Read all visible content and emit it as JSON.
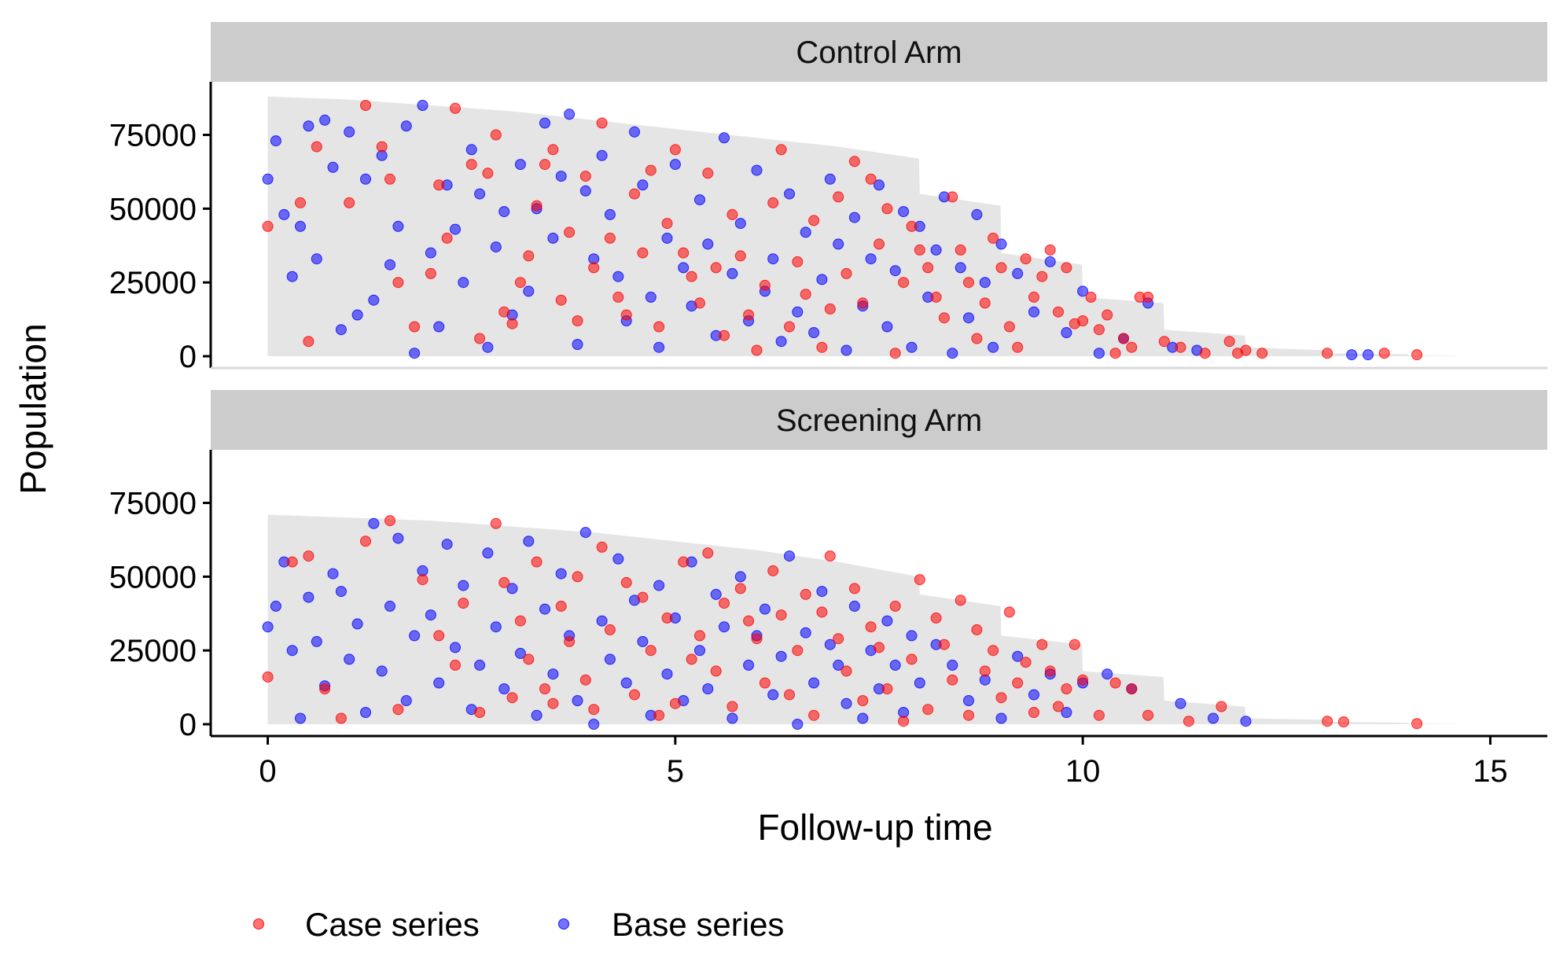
{
  "chart_data": {
    "type": "scatter",
    "xlabel": "Follow-up time",
    "ylabel": "Population",
    "xlim": [
      -0.7,
      15.7
    ],
    "ylim": [
      -4000,
      93000
    ],
    "x_ticks": [
      0,
      5,
      10,
      15
    ],
    "y_ticks": [
      0,
      25000,
      50000,
      75000
    ],
    "grid": false,
    "legend_position": "bottom-left",
    "series": [
      {
        "name": "Case series",
        "color": "#ff0000",
        "key": "case"
      },
      {
        "name": "Base series",
        "color": "#0000ff",
        "key": "base"
      }
    ],
    "point_alpha": 0.55,
    "panels": [
      {
        "title": "Control Arm",
        "population_at_risk": {
          "x": [
            0,
            1,
            2,
            3,
            4,
            5,
            6,
            7,
            7.99,
            8,
            8.99,
            9,
            9.99,
            10,
            10.99,
            11,
            11.99,
            12,
            12.99,
            13,
            13.99,
            14,
            14.6
          ],
          "y": [
            88000,
            87000,
            85000,
            83000,
            80000,
            77000,
            74000,
            71000,
            67000,
            55000,
            51000,
            35000,
            31000,
            20000,
            18000,
            9000,
            7000,
            3000,
            2000,
            1000,
            700,
            300,
            100
          ]
        },
        "case": {
          "x": [
            0.0,
            0.4,
            0.5,
            0.6,
            1.0,
            1.2,
            1.4,
            1.5,
            1.6,
            1.8,
            2.0,
            2.1,
            2.2,
            2.3,
            2.5,
            2.6,
            2.7,
            2.8,
            2.9,
            3.0,
            3.1,
            3.2,
            3.3,
            3.4,
            3.5,
            3.6,
            3.7,
            3.8,
            3.9,
            4.0,
            4.1,
            4.2,
            4.3,
            4.4,
            4.5,
            4.6,
            4.7,
            4.8,
            4.9,
            5.0,
            5.1,
            5.2,
            5.3,
            5.4,
            5.5,
            5.6,
            5.7,
            5.8,
            5.9,
            6.0,
            6.1,
            6.2,
            6.3,
            6.4,
            6.5,
            6.6,
            6.7,
            6.8,
            6.9,
            7.0,
            7.1,
            7.2,
            7.3,
            7.4,
            7.5,
            7.6,
            7.7,
            7.8,
            7.9,
            8.0,
            8.1,
            8.2,
            8.3,
            8.4,
            8.5,
            8.6,
            8.7,
            8.8,
            8.9,
            9.0,
            9.1,
            9.2,
            9.3,
            9.4,
            9.5,
            9.6,
            9.7,
            9.8,
            9.9,
            10.0,
            10.1,
            10.2,
            10.3,
            10.4,
            10.5,
            10.6,
            10.7,
            10.8,
            11.0,
            11.2,
            11.5,
            11.8,
            11.9,
            12.0,
            12.2,
            13.0,
            13.7,
            14.1
          ],
          "y": [
            44000,
            52000,
            5000,
            71000,
            52000,
            85000,
            71000,
            60000,
            25000,
            10000,
            28000,
            58000,
            40000,
            84000,
            65000,
            6000,
            62000,
            75000,
            15000,
            11000,
            25000,
            34000,
            51000,
            65000,
            70000,
            19000,
            42000,
            12000,
            61000,
            30000,
            79000,
            40000,
            20000,
            14000,
            55000,
            35000,
            63000,
            10000,
            45000,
            70000,
            35000,
            27000,
            18000,
            62000,
            30000,
            7000,
            48000,
            34000,
            14000,
            2000,
            24000,
            52000,
            70000,
            10000,
            32000,
            21000,
            46000,
            3000,
            16000,
            54000,
            28000,
            66000,
            18000,
            60000,
            38000,
            50000,
            1000,
            25000,
            44000,
            36000,
            30000,
            20000,
            13000,
            54000,
            36000,
            25000,
            6000,
            18000,
            40000,
            30000,
            10000,
            3000,
            33000,
            20000,
            27000,
            36000,
            15000,
            30000,
            11000,
            12000,
            20000,
            9000,
            14000,
            1000,
            6000,
            3000,
            20000,
            20000,
            5000,
            3000,
            1000,
            5000,
            1000,
            2000,
            1000,
            1000,
            1000,
            500
          ]
        },
        "base": {
          "x": [
            0.0,
            0.1,
            0.2,
            0.3,
            0.4,
            0.5,
            0.6,
            0.7,
            0.8,
            0.9,
            1.0,
            1.1,
            1.2,
            1.3,
            1.4,
            1.5,
            1.6,
            1.7,
            1.8,
            1.9,
            2.0,
            2.1,
            2.2,
            2.3,
            2.4,
            2.5,
            2.6,
            2.7,
            2.8,
            2.9,
            3.0,
            3.1,
            3.2,
            3.3,
            3.4,
            3.5,
            3.6,
            3.7,
            3.8,
            3.9,
            4.0,
            4.1,
            4.2,
            4.3,
            4.4,
            4.5,
            4.6,
            4.7,
            4.8,
            4.9,
            5.0,
            5.1,
            5.2,
            5.3,
            5.4,
            5.5,
            5.6,
            5.7,
            5.8,
            5.9,
            6.0,
            6.1,
            6.2,
            6.3,
            6.4,
            6.5,
            6.6,
            6.7,
            6.8,
            6.9,
            7.0,
            7.1,
            7.2,
            7.3,
            7.4,
            7.5,
            7.6,
            7.7,
            7.8,
            7.9,
            8.0,
            8.1,
            8.2,
            8.3,
            8.4,
            8.5,
            8.6,
            8.7,
            8.8,
            8.9,
            9.0,
            9.2,
            9.4,
            9.6,
            9.8,
            10.0,
            10.2,
            10.5,
            10.8,
            11.1,
            11.4,
            13.3,
            13.5
          ],
          "y": [
            60000,
            73000,
            48000,
            27000,
            44000,
            78000,
            33000,
            80000,
            64000,
            9000,
            76000,
            14000,
            60000,
            19000,
            68000,
            31000,
            44000,
            78000,
            1000,
            85000,
            35000,
            10000,
            58000,
            43000,
            25000,
            70000,
            55000,
            3000,
            37000,
            49000,
            14000,
            65000,
            22000,
            50000,
            79000,
            40000,
            61000,
            82000,
            4000,
            56000,
            33000,
            68000,
            48000,
            27000,
            12000,
            76000,
            58000,
            20000,
            3000,
            40000,
            65000,
            30000,
            17000,
            53000,
            38000,
            7000,
            74000,
            28000,
            45000,
            12000,
            63000,
            22000,
            33000,
            5000,
            55000,
            15000,
            42000,
            8000,
            26000,
            60000,
            38000,
            2000,
            47000,
            17000,
            33000,
            58000,
            10000,
            29000,
            49000,
            3000,
            44000,
            20000,
            36000,
            54000,
            1000,
            30000,
            13000,
            48000,
            25000,
            3000,
            38000,
            28000,
            15000,
            32000,
            8000,
            22000,
            1000,
            6000,
            18000,
            3000,
            2000,
            500,
            500
          ]
        }
      },
      {
        "title": "Screening Arm",
        "population_at_risk": {
          "x": [
            0,
            1,
            2,
            3,
            4,
            5,
            6,
            7,
            7.99,
            8,
            8.99,
            9,
            9.99,
            10,
            10.99,
            11,
            11.99,
            12,
            12.99,
            13,
            13.99,
            14,
            14.6
          ],
          "y": [
            71000,
            70000,
            69000,
            67000,
            65000,
            62000,
            59000,
            55000,
            50000,
            44000,
            40000,
            30000,
            27000,
            18000,
            16000,
            8000,
            6000,
            2000,
            1500,
            800,
            500,
            200,
            100
          ]
        },
        "case": {
          "x": [
            0.0,
            0.3,
            0.5,
            0.7,
            0.9,
            1.2,
            1.5,
            1.6,
            1.9,
            2.1,
            2.3,
            2.4,
            2.6,
            2.8,
            2.9,
            3.0,
            3.1,
            3.2,
            3.3,
            3.4,
            3.5,
            3.6,
            3.7,
            3.8,
            3.9,
            4.0,
            4.1,
            4.2,
            4.4,
            4.5,
            4.6,
            4.7,
            4.8,
            4.9,
            5.0,
            5.1,
            5.2,
            5.3,
            5.4,
            5.5,
            5.6,
            5.7,
            5.8,
            5.9,
            6.0,
            6.1,
            6.2,
            6.3,
            6.4,
            6.5,
            6.6,
            6.7,
            6.8,
            6.9,
            7.0,
            7.1,
            7.2,
            7.3,
            7.4,
            7.5,
            7.6,
            7.7,
            7.8,
            7.9,
            8.0,
            8.1,
            8.2,
            8.3,
            8.4,
            8.5,
            8.6,
            8.7,
            8.8,
            8.9,
            9.0,
            9.1,
            9.2,
            9.3,
            9.4,
            9.5,
            9.6,
            9.7,
            9.8,
            9.9,
            10.0,
            10.2,
            10.4,
            10.6,
            10.8,
            11.3,
            11.7,
            13.0,
            13.2,
            14.1
          ],
          "y": [
            16000,
            55000,
            57000,
            12000,
            2000,
            62000,
            69000,
            5000,
            49000,
            30000,
            20000,
            41000,
            4000,
            68000,
            48000,
            9000,
            35000,
            22000,
            55000,
            12000,
            7000,
            40000,
            28000,
            50000,
            15000,
            5000,
            60000,
            32000,
            48000,
            10000,
            43000,
            25000,
            3000,
            36000,
            7000,
            55000,
            22000,
            30000,
            58000,
            18000,
            41000,
            6000,
            46000,
            35000,
            29000,
            14000,
            52000,
            37000,
            10000,
            25000,
            44000,
            3000,
            38000,
            57000,
            29000,
            18000,
            46000,
            8000,
            33000,
            26000,
            12000,
            40000,
            1000,
            22000,
            49000,
            5000,
            36000,
            27000,
            15000,
            42000,
            3000,
            32000,
            18000,
            25000,
            9000,
            38000,
            14000,
            21000,
            4000,
            27000,
            18000,
            6000,
            12000,
            27000,
            15000,
            3000,
            14000,
            12000,
            3000,
            1000,
            6000,
            1000,
            800,
            200
          ]
        },
        "base": {
          "x": [
            0.0,
            0.1,
            0.2,
            0.3,
            0.4,
            0.5,
            0.6,
            0.7,
            0.8,
            0.9,
            1.0,
            1.1,
            1.2,
            1.3,
            1.4,
            1.5,
            1.6,
            1.7,
            1.8,
            1.9,
            2.0,
            2.1,
            2.2,
            2.3,
            2.4,
            2.5,
            2.6,
            2.7,
            2.8,
            2.9,
            3.0,
            3.1,
            3.2,
            3.3,
            3.4,
            3.5,
            3.6,
            3.7,
            3.8,
            3.9,
            4.0,
            4.1,
            4.2,
            4.3,
            4.4,
            4.5,
            4.6,
            4.7,
            4.8,
            4.9,
            5.0,
            5.1,
            5.2,
            5.3,
            5.4,
            5.5,
            5.6,
            5.7,
            5.8,
            5.9,
            6.0,
            6.1,
            6.2,
            6.3,
            6.4,
            6.5,
            6.6,
            6.7,
            6.8,
            6.9,
            7.0,
            7.1,
            7.2,
            7.3,
            7.4,
            7.5,
            7.6,
            7.7,
            7.8,
            7.9,
            8.0,
            8.2,
            8.4,
            8.6,
            8.8,
            9.0,
            9.2,
            9.4,
            9.6,
            9.8,
            10.0,
            10.3,
            10.6,
            11.2,
            11.6,
            12.0
          ],
          "y": [
            33000,
            40000,
            55000,
            25000,
            2000,
            43000,
            28000,
            13000,
            51000,
            45000,
            22000,
            34000,
            4000,
            68000,
            18000,
            40000,
            63000,
            8000,
            30000,
            52000,
            37000,
            14000,
            61000,
            26000,
            47000,
            5000,
            20000,
            58000,
            33000,
            12000,
            46000,
            24000,
            62000,
            3000,
            39000,
            17000,
            51000,
            30000,
            8000,
            65000,
            0,
            35000,
            22000,
            56000,
            14000,
            42000,
            28000,
            3000,
            47000,
            17000,
            36000,
            8000,
            55000,
            25000,
            12000,
            44000,
            33000,
            2000,
            50000,
            20000,
            30000,
            39000,
            10000,
            23000,
            57000,
            0,
            31000,
            14000,
            45000,
            27000,
            20000,
            7000,
            40000,
            2000,
            25000,
            12000,
            35000,
            20000,
            4000,
            30000,
            14000,
            27000,
            20000,
            8000,
            15000,
            2000,
            23000,
            10000,
            17000,
            4000,
            14000,
            17000,
            12000,
            7000,
            2000,
            1000
          ]
        }
      }
    ]
  }
}
